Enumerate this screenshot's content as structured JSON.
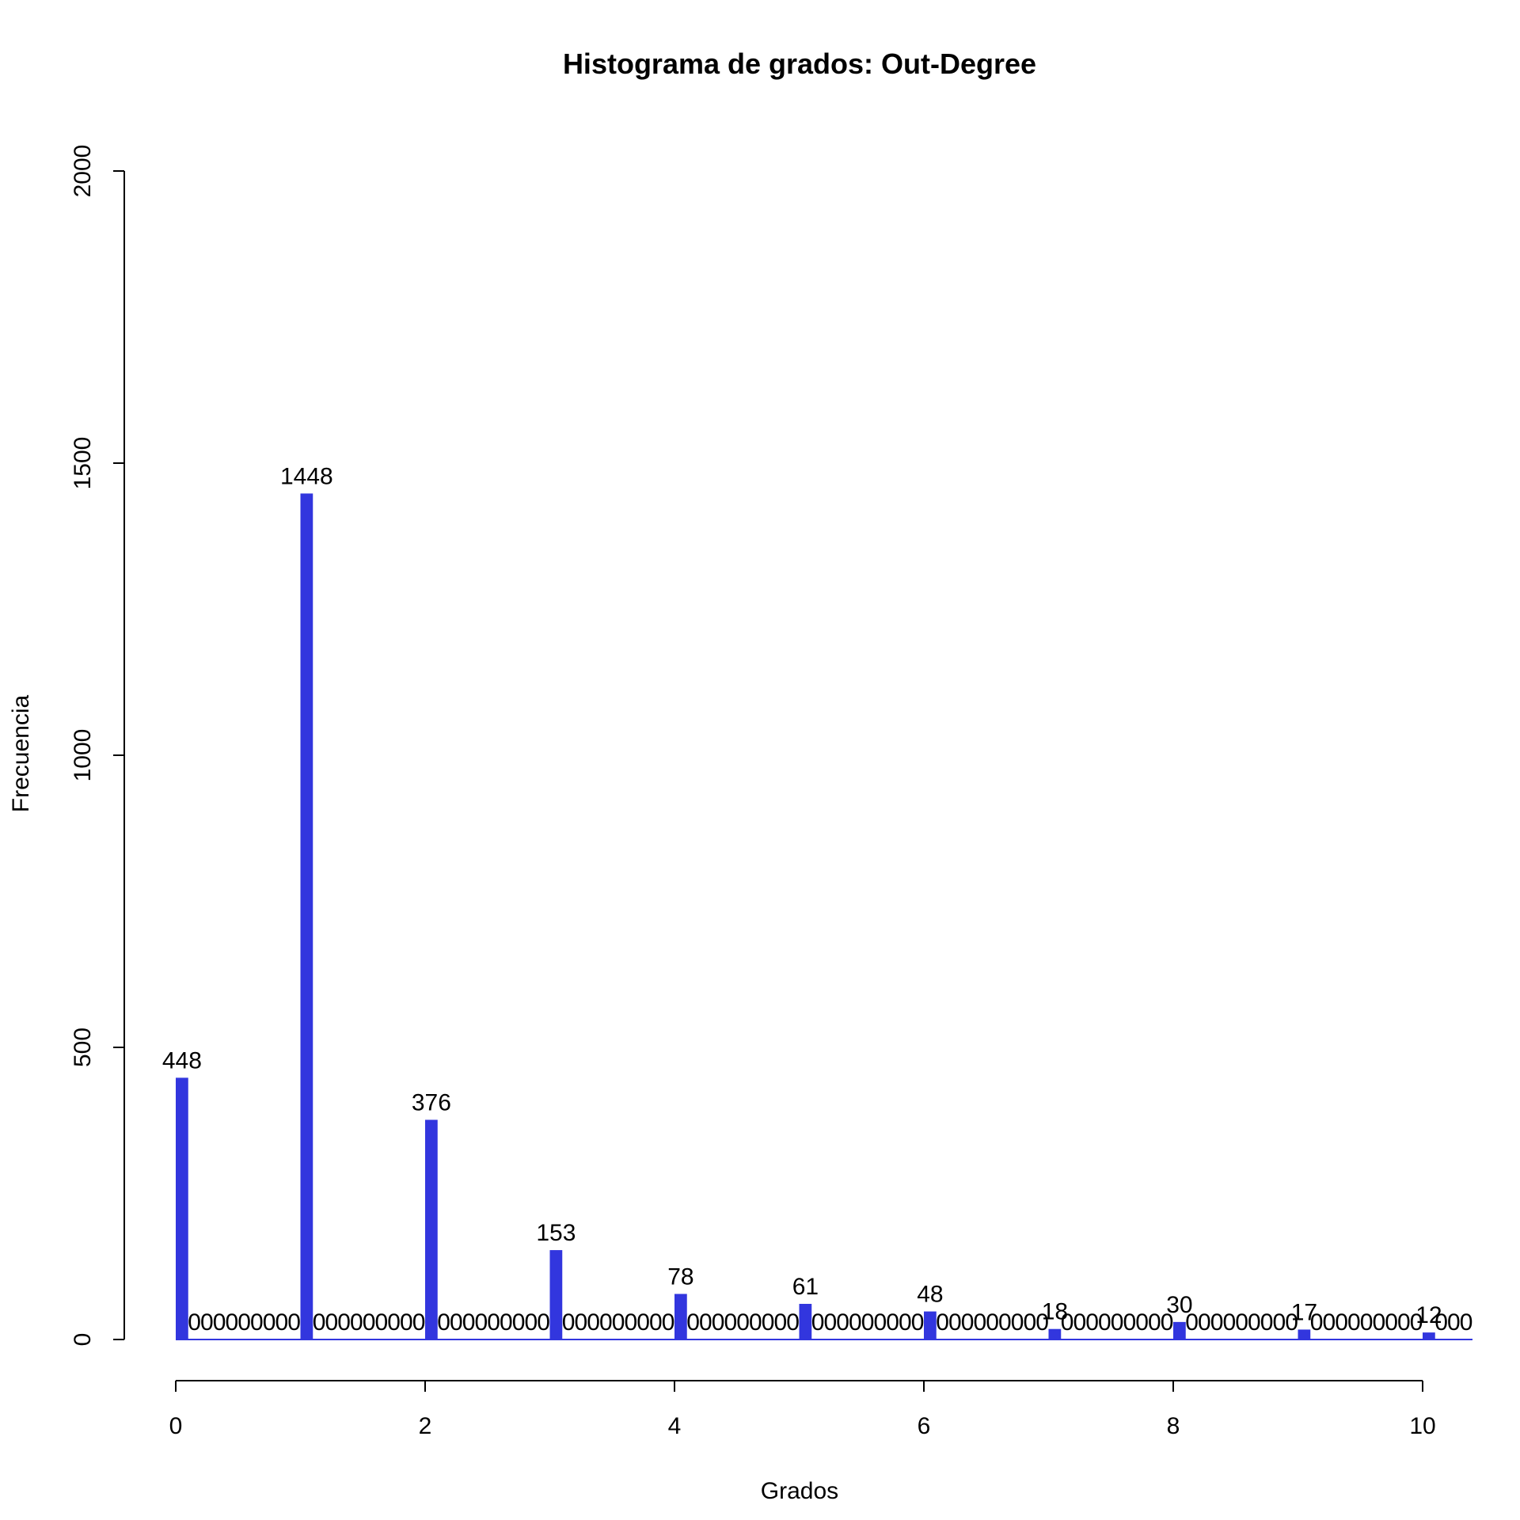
{
  "chart_data": {
    "type": "bar",
    "title": "Histograma de grados: Out-Degree",
    "xlabel": "Grados",
    "ylabel": "Frecuencia",
    "bar_color": "#3236de",
    "xlim": [
      0,
      10.4
    ],
    "ylim": [
      0,
      2000
    ],
    "x_ticks": [
      0,
      2,
      4,
      6,
      8,
      10
    ],
    "y_ticks": [
      0,
      500,
      1000,
      1500,
      2000
    ],
    "bins_per_unit": 10,
    "x": [
      0,
      1,
      2,
      3,
      4,
      5,
      6,
      7,
      8,
      9,
      10
    ],
    "values": [
      448,
      1448,
      376,
      153,
      78,
      61,
      48,
      18,
      30,
      17,
      12
    ],
    "zero_bin_label": "0"
  }
}
